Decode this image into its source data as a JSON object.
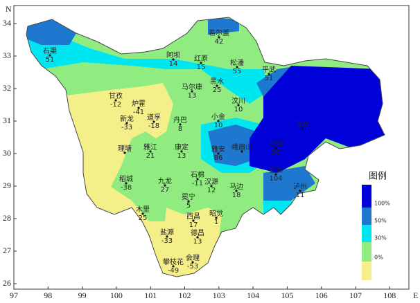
{
  "xticks": [
    97,
    98,
    99,
    100,
    101,
    102,
    103,
    104,
    105,
    106,
    107,
    108
  ],
  "yticks": [
    26,
    27,
    28,
    29,
    30,
    31,
    32,
    33,
    34
  ],
  "x_axis_label": "E",
  "y_axis_label": "N",
  "legend": {
    "title": "图例",
    "items": [
      {
        "label": "100%",
        "color": "#0000d8"
      },
      {
        "label": "50%",
        "color": "#1e78d0"
      },
      {
        "label": "30%",
        "color": "#00e6f0"
      },
      {
        "label": "0%",
        "color": "#90ec80"
      }
    ],
    "last_color": "#f5ef8a"
  },
  "stations": [
    {
      "name": "若尔盖",
      "value": 42
    },
    {
      "name": "石渠",
      "value": 51
    },
    {
      "name": "阿坝",
      "value": 14
    },
    {
      "name": "红原",
      "value": 15
    },
    {
      "name": "松潘",
      "value": 55
    },
    {
      "name": "平武",
      "value": 51
    },
    {
      "name": "马尔康",
      "value": 13
    },
    {
      "name": "黑水",
      "value": 25
    },
    {
      "name": "甘孜",
      "value": -12
    },
    {
      "name": "炉霍",
      "value": -41
    },
    {
      "name": "汶川",
      "value": 10
    },
    {
      "name": "小金",
      "value": 10
    },
    {
      "name": "丹巴",
      "value": 8
    },
    {
      "name": "新龙",
      "value": -33
    },
    {
      "name": "道孚",
      "value": -18
    },
    {
      "name": "理塘"
    },
    {
      "name": "雅江",
      "value": 21
    },
    {
      "name": "康定",
      "value": 13
    },
    {
      "name": "雅安",
      "value": 86
    },
    {
      "name": "峨眉山"
    },
    {
      "name": "稻城",
      "value": -38
    },
    {
      "name": "九龙",
      "value": 27
    },
    {
      "name": "石棉",
      "value": -11
    },
    {
      "name": "汉源",
      "value": 12
    },
    {
      "name": "马边",
      "value": 18
    },
    {
      "name": "宜宾",
      "value": 104
    },
    {
      "name": "泸州",
      "value": 11
    },
    {
      "name": "冕宁",
      "value": 5
    },
    {
      "name": "木里",
      "value": 25
    },
    {
      "name": "西昌",
      "value": 17
    },
    {
      "name": "昭觉",
      "value": 1
    },
    {
      "name": "盐源",
      "value": -33
    },
    {
      "name": "德昌",
      "value": 13
    },
    {
      "name": "会理",
      "value": -53
    },
    {
      "name": "攀枝花",
      "value": -49
    },
    {
      "name": "资阳",
      "value": 56
    },
    {
      "name": "南充"
    }
  ]
}
